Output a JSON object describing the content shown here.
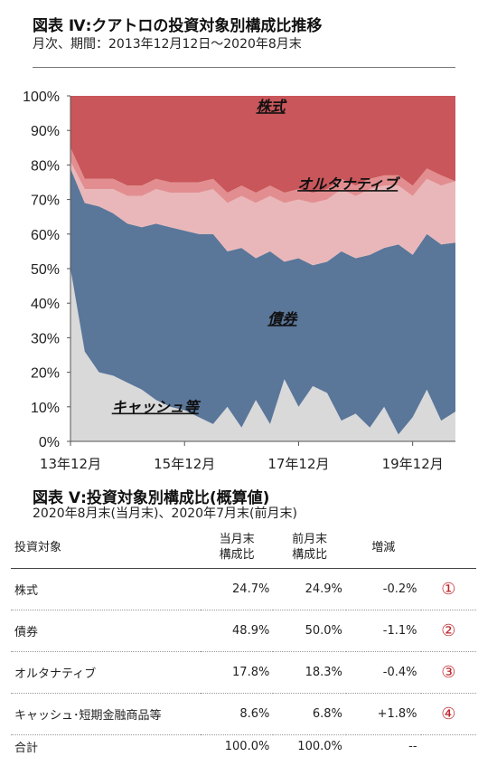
{
  "fig4": {
    "title": "図表 Ⅳ:クアトロの投資対象別構成比推移",
    "subtitle": "月次、期間：2013年12月12日～2020年8月末"
  },
  "fig5": {
    "title": "図表 Ⅴ:投資対象別構成比(概算値)",
    "subtitle": "2020年8月末(当月末)、2020年7月末(前月末)"
  },
  "table": {
    "headers": {
      "name": "投資対象",
      "current_l1": "当月末",
      "current_l2": "構成比",
      "prev_l1": "前月末",
      "prev_l2": "構成比",
      "change": "増減"
    },
    "rows": [
      {
        "name": "株式",
        "current": "24.7%",
        "prev": "24.9%",
        "change": "-0.2%",
        "mark": "①"
      },
      {
        "name": "債券",
        "current": "48.9%",
        "prev": "50.0%",
        "change": "-1.1%",
        "mark": "②"
      },
      {
        "name": "オルタナティブ",
        "current": "17.8%",
        "prev": "18.3%",
        "change": "-0.4%",
        "mark": "③"
      },
      {
        "name": "キャッシュ･短期金融商品等",
        "current": "8.6%",
        "prev": "6.8%",
        "change": "+1.8%",
        "mark": "④"
      }
    ],
    "total": {
      "name": "合計",
      "current": "100.0%",
      "prev": "100.0%",
      "change": "--"
    }
  },
  "chart_data": {
    "type": "area",
    "stacked": true,
    "ylim": [
      0,
      100
    ],
    "y_ticks": [
      "0%",
      "10%",
      "20%",
      "30%",
      "40%",
      "50%",
      "60%",
      "70%",
      "80%",
      "90%",
      "100%"
    ],
    "x_ticks": [
      "13年12月",
      "15年12月",
      "17年12月",
      "19年12月"
    ],
    "x": [
      "2013-12",
      "2014-03",
      "2014-06",
      "2014-09",
      "2014-12",
      "2015-03",
      "2015-06",
      "2015-09",
      "2015-12",
      "2016-03",
      "2016-06",
      "2016-09",
      "2016-12",
      "2017-03",
      "2017-06",
      "2017-09",
      "2017-12",
      "2018-03",
      "2018-06",
      "2018-09",
      "2018-12",
      "2019-03",
      "2019-06",
      "2019-09",
      "2019-12",
      "2020-03",
      "2020-06",
      "2020-08"
    ],
    "series": [
      {
        "name": "キャッシュ等",
        "color": "#d9d9d9",
        "values": [
          50,
          26,
          20,
          19,
          17,
          15,
          12,
          10,
          9,
          7,
          5,
          10,
          4,
          12,
          5,
          18,
          10,
          16,
          14,
          6,
          8,
          4,
          10,
          2,
          7,
          15,
          6,
          8.6
        ]
      },
      {
        "name": "債券",
        "color": "#5a7699",
        "values": [
          29,
          43,
          48,
          47,
          46,
          47,
          51,
          52,
          52,
          53,
          55,
          45,
          52,
          41,
          50,
          34,
          43,
          35,
          38,
          49,
          45,
          50,
          46,
          55,
          47,
          45,
          51,
          48.9
        ]
      },
      {
        "name": "オルタナティブ",
        "color": "#e9b7b9",
        "values": [
          2,
          4,
          5,
          7,
          8,
          9,
          10,
          10,
          11,
          12,
          13,
          14,
          15,
          16,
          16,
          17,
          17,
          18,
          18,
          18,
          18,
          19,
          18,
          17,
          17,
          16,
          17,
          17.8
        ]
      },
      {
        "name": "オルタナティブ",
        "color": "#e28e90",
        "values": [
          4,
          3,
          3,
          3,
          3,
          3,
          3,
          3,
          3,
          3,
          3,
          3,
          3,
          3,
          3,
          3,
          3,
          3,
          3,
          3,
          3,
          3,
          3,
          3,
          3,
          3,
          3,
          0
        ]
      },
      {
        "name": "株式",
        "color": "#c9565a",
        "values": [
          15,
          24,
          24,
          24,
          26,
          26,
          24,
          25,
          25,
          25,
          24,
          28,
          26,
          28,
          26,
          28,
          27,
          28,
          27,
          24,
          26,
          24,
          23,
          23,
          26,
          21,
          23,
          24.7
        ]
      }
    ],
    "annotations": [
      {
        "text": "株式",
        "series": 4
      },
      {
        "text": "オルタナティブ",
        "series": 2
      },
      {
        "text": "債券",
        "series": 1
      },
      {
        "text": "キャッシュ等",
        "series": 0
      }
    ]
  }
}
